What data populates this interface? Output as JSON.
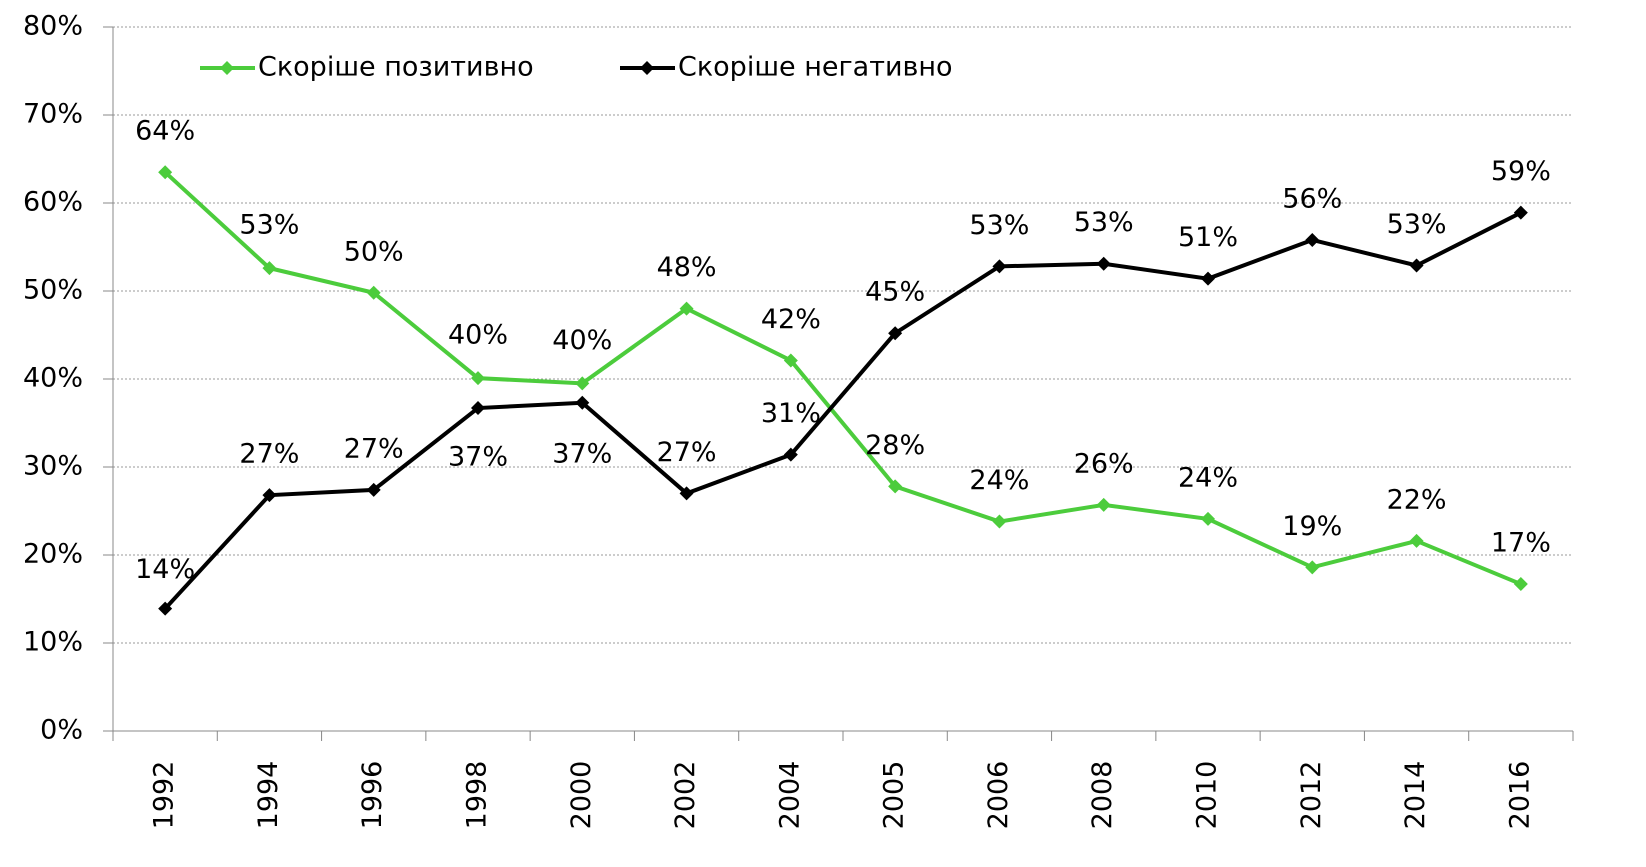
{
  "chart_data": {
    "type": "line",
    "categories": [
      "1992",
      "1994",
      "1996",
      "1998",
      "2000",
      "2002",
      "2004",
      "2005",
      "2006",
      "2008",
      "2010",
      "2012",
      "2014",
      "2016"
    ],
    "series": [
      {
        "name": "Скоріше позитивно",
        "color": "#4ccc3c",
        "values": [
          63.5,
          52.6,
          49.8,
          40.1,
          39.5,
          48.0,
          42.1,
          27.8,
          23.8,
          25.7,
          24.1,
          18.6,
          21.6,
          16.7
        ],
        "value_labels": [
          "64%",
          "53%",
          "50%",
          "40%",
          "40%",
          "48%",
          "42%",
          "28%",
          "24%",
          "26%",
          "24%",
          "19%",
          "22%",
          "17%"
        ]
      },
      {
        "name": "Скоріше негативно",
        "color": "#000000",
        "values": [
          13.9,
          26.8,
          27.4,
          36.7,
          37.3,
          27.0,
          31.4,
          45.2,
          52.8,
          53.1,
          51.4,
          55.8,
          52.9,
          58.9
        ],
        "value_labels": [
          "14%",
          "27%",
          "27%",
          "37%",
          "37%",
          "27%",
          "31%",
          "45%",
          "53%",
          "53%",
          "51%",
          "56%",
          "53%",
          "59%"
        ]
      }
    ],
    "ylim": [
      0,
      80
    ],
    "yticks": [
      {
        "value": 0,
        "label": "0%"
      },
      {
        "value": 10,
        "label": "10%"
      },
      {
        "value": 20,
        "label": "20%"
      },
      {
        "value": 30,
        "label": "30%"
      },
      {
        "value": 40,
        "label": "40%"
      },
      {
        "value": 50,
        "label": "50%"
      },
      {
        "value": 60,
        "label": "60%"
      },
      {
        "value": 70,
        "label": "70%"
      },
      {
        "value": 80,
        "label": "80%"
      }
    ],
    "grid": true,
    "legend": "top-left"
  }
}
